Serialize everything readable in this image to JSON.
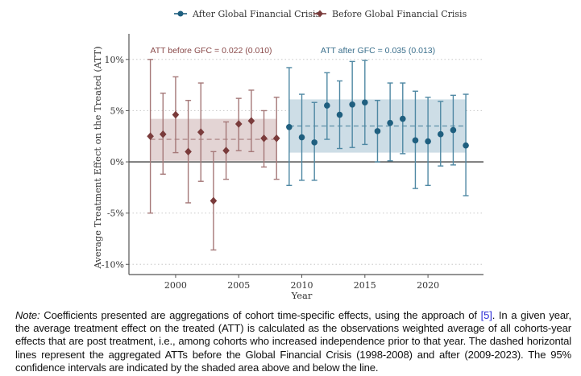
{
  "chart_data": {
    "type": "scatter",
    "subtype": "point-with-error-bars",
    "xlabel": "Year",
    "ylabel": "Average Treatment Effect on the Treated (ATT)",
    "xlim": [
      1996.3,
      2024.4
    ],
    "ylim": [
      -11,
      12.5
    ],
    "x_ticks": [
      2000,
      2005,
      2010,
      2015,
      2020
    ],
    "x_tick_labels": [
      "2000",
      "2005",
      "2010",
      "2015",
      "2020"
    ],
    "y_ticks": [
      10,
      5,
      0,
      -5,
      -10
    ],
    "y_tick_labels": [
      "10%",
      "5%",
      "0%",
      "-5%",
      "-10%"
    ],
    "grid": "horizontal-dotted",
    "legend_position": "top",
    "legend": [
      "After Global Financial Crisis",
      "Before Global Financial Crisis"
    ],
    "series": [
      {
        "name": "After Global Financial Crisis",
        "color": "#1f5f7f",
        "marker": "circle",
        "x": [
          2009,
          2010,
          2011,
          2012,
          2013,
          2014,
          2015,
          2016,
          2017,
          2018,
          2019,
          2020,
          2021,
          2022,
          2023
        ],
        "y": [
          3.4,
          2.4,
          1.9,
          5.5,
          4.6,
          5.6,
          5.8,
          3.0,
          3.8,
          4.2,
          2.1,
          2.0,
          2.7,
          3.1,
          1.6
        ],
        "ci_low": [
          -2.3,
          -1.8,
          -1.8,
          2.2,
          1.3,
          1.4,
          1.7,
          0.0,
          0.1,
          0.8,
          -2.6,
          -2.3,
          -0.4,
          -0.3,
          -3.3
        ],
        "ci_high": [
          9.2,
          6.6,
          5.8,
          8.7,
          7.9,
          9.8,
          9.9,
          6.0,
          7.7,
          7.7,
          6.9,
          6.3,
          5.9,
          6.5,
          6.6
        ],
        "aggregate": {
          "att": 3.5,
          "band_low": 0.9,
          "band_high": 6.1,
          "x_from": 2009,
          "x_to": 2023
        },
        "annotation": "ATT after GFC = 0.035 (0.013)"
      },
      {
        "name": "Before Global Financial Crisis",
        "color": "#7a3b3b",
        "marker": "diamond",
        "x": [
          1998,
          1999,
          2000,
          2001,
          2002,
          2003,
          2004,
          2005,
          2006,
          2007,
          2008
        ],
        "y": [
          2.5,
          2.7,
          4.6,
          1.0,
          2.9,
          -3.8,
          1.1,
          3.7,
          4.0,
          2.3,
          2.3
        ],
        "ci_low": [
          -5.0,
          -1.2,
          0.9,
          -4.0,
          -1.9,
          -8.6,
          -1.7,
          1.1,
          1.0,
          -0.5,
          -1.7
        ],
        "ci_high": [
          10.0,
          6.7,
          8.3,
          6.0,
          7.7,
          1.0,
          3.9,
          6.2,
          7.0,
          5.0,
          6.3
        ],
        "aggregate": {
          "att": 2.2,
          "band_low": 0.1,
          "band_high": 4.2,
          "x_from": 1998,
          "x_to": 2008
        },
        "annotation": "ATT before GFC = 0.022 (0.010)"
      }
    ]
  },
  "note": {
    "label": "Note:",
    "text_before_ref": " Coefficients presented are aggregations of cohort time-specific effects, using the approach of ",
    "ref": "[5]",
    "text_after_ref": ". In a given year, the average treatment effect on the treated (ATT) is calculated as the observations weighted average of all cohorts-year effects that are post treatment, i.e., among cohorts who increased independence prior to that year. The dashed horizontal lines represent the aggregated ATTs before the Global Financial Crisis (1998-2008) and after (2009-2023). The 95% confidence intervals are indicated by the shaded area above and below the line."
  }
}
